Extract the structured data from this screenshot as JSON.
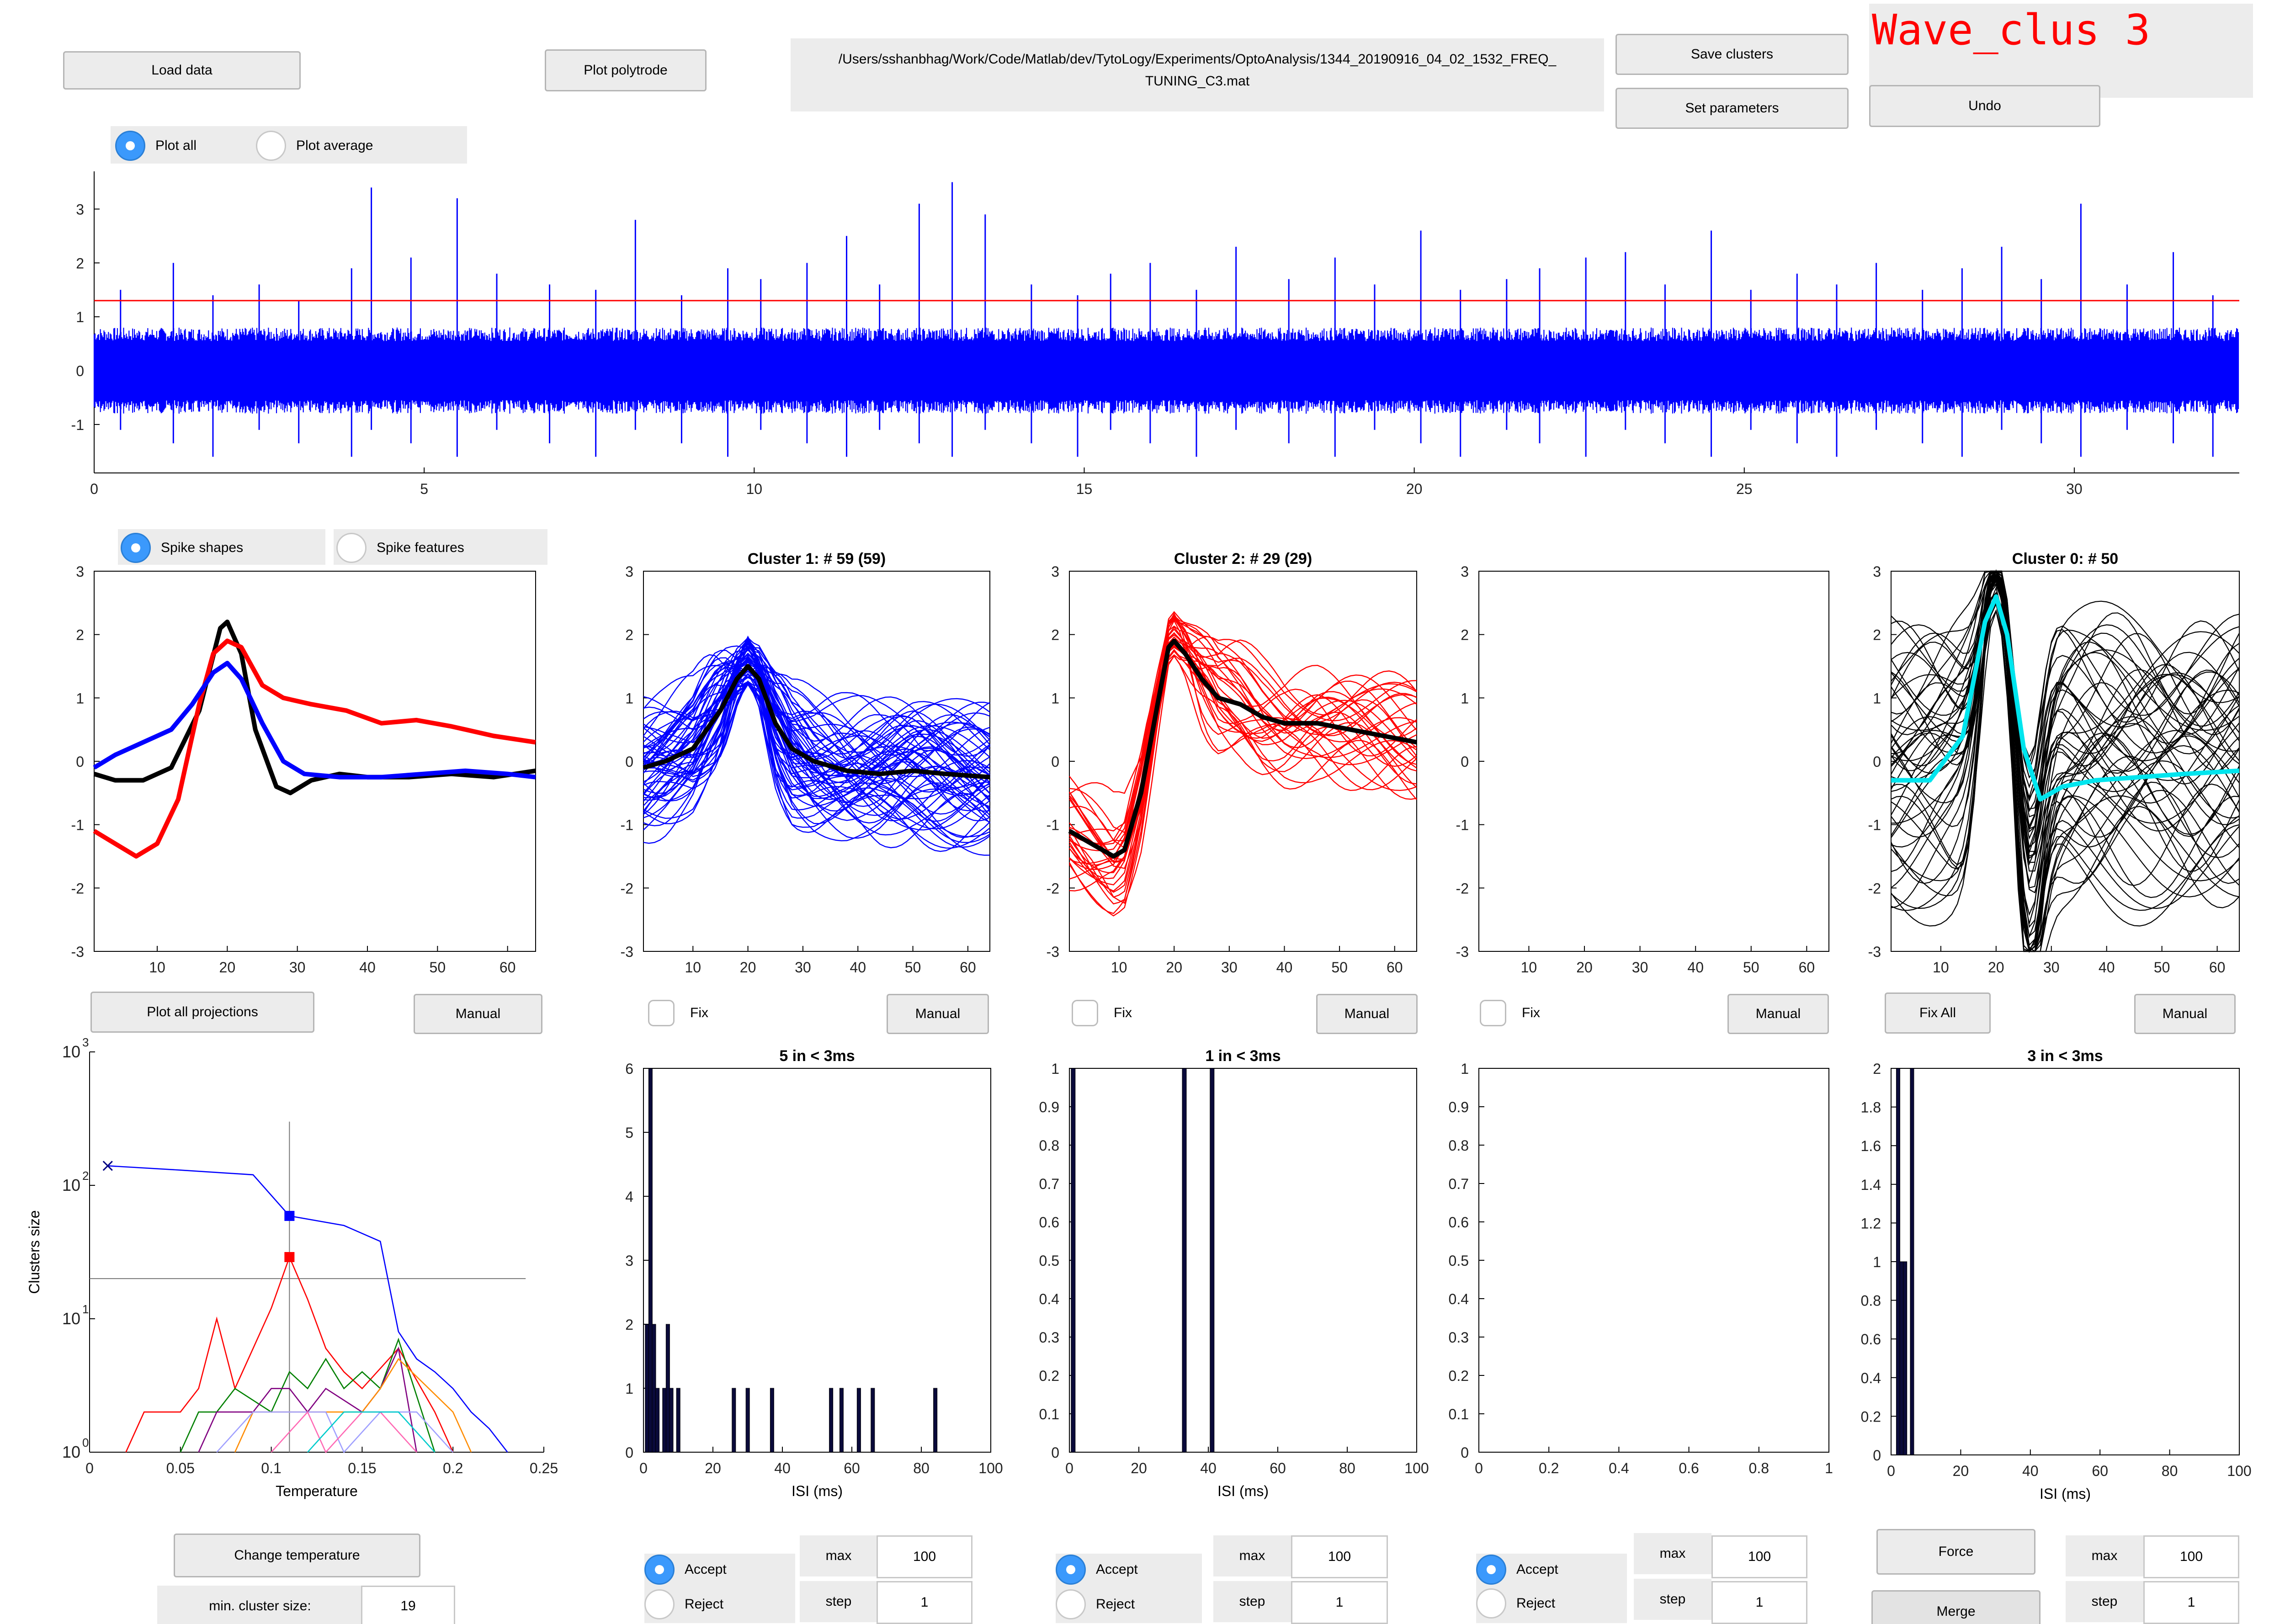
{
  "app": {
    "title": "Wave_clus 3",
    "title_color": "#ff0000"
  },
  "toolbar": {
    "load_data": "Load data",
    "plot_polytrode": "Plot polytrode",
    "file_path_line1": "/Users/sshanbhag/Work/Code/Matlab/dev/TytoLogy/Experiments/OptoAnalysis/1344_20190916_04_02_1532_FREQ_",
    "file_path_line2": "TUNING_C3.mat",
    "save_clusters": "Save clusters",
    "set_parameters": "Set parameters",
    "undo": "Undo"
  },
  "plot_mode": {
    "plot_all": "Plot all",
    "plot_average": "Plot average",
    "selected": "plot_all"
  },
  "spike_view": {
    "spike_shapes": "Spike shapes",
    "spike_features": "Spike features",
    "selected": "spike_shapes"
  },
  "buttons": {
    "plot_all_projections": "Plot all projections",
    "manual": "Manual",
    "fix": "Fix",
    "fix_all": "Fix All",
    "change_temperature": "Change temperature",
    "force": "Force",
    "merge": "Merge"
  },
  "min_cluster": {
    "label": "min. cluster size:",
    "value": "19"
  },
  "hist_controls": {
    "accept": "Accept",
    "reject": "Reject",
    "max_label": "max",
    "step_label": "step",
    "max_value": "100",
    "step_value": "1"
  },
  "chart_data": [
    {
      "id": "raw-signal",
      "type": "line",
      "x_ticks": [
        "0",
        "5",
        "10",
        "15",
        "20",
        "25",
        "30"
      ],
      "y_ticks": [
        "-1",
        "0",
        "1",
        "2",
        "3"
      ],
      "xlim": [
        0,
        32.5
      ],
      "ylim": [
        -1.9,
        3.7
      ],
      "threshold": 1.3,
      "colors": {
        "signal": "#0000ff",
        "threshold": "#ff0000"
      },
      "spike_times": [
        0.4,
        1.2,
        1.8,
        2.5,
        3.1,
        3.9,
        4.2,
        4.8,
        5.5,
        6.1,
        6.9,
        7.6,
        8.2,
        8.9,
        9.6,
        10.1,
        10.8,
        11.4,
        11.9,
        12.5,
        13.0,
        13.5,
        14.2,
        14.9,
        15.4,
        16.0,
        16.7,
        17.3,
        18.1,
        18.8,
        19.4,
        20.1,
        20.7,
        21.4,
        21.9,
        22.6,
        23.2,
        23.8,
        24.5,
        25.1,
        25.8,
        26.4,
        27.0,
        27.7,
        28.3,
        28.9,
        29.5,
        30.1,
        30.8,
        31.5,
        32.1
      ],
      "spike_heights": [
        1.5,
        2.0,
        1.4,
        1.6,
        1.3,
        1.9,
        3.4,
        2.1,
        3.2,
        1.8,
        1.6,
        1.5,
        2.8,
        1.4,
        1.9,
        1.7,
        2.0,
        2.5,
        1.6,
        3.1,
        3.5,
        2.9,
        1.6,
        1.4,
        1.8,
        2.0,
        1.5,
        2.3,
        1.7,
        2.1,
        1.6,
        2.6,
        1.5,
        1.7,
        1.9,
        2.1,
        2.2,
        1.6,
        2.6,
        1.5,
        1.8,
        1.6,
        2.0,
        1.5,
        1.9,
        2.3,
        1.7,
        3.1,
        1.6,
        2.2,
        1.4
      ]
    },
    {
      "id": "mean-spikes",
      "type": "line",
      "x_ticks": [
        "10",
        "20",
        "30",
        "40",
        "50",
        "60"
      ],
      "y_ticks": [
        "-3",
        "-2",
        "-1",
        "0",
        "1",
        "2",
        "3"
      ],
      "xlim": [
        1,
        64
      ],
      "ylim": [
        -3,
        3
      ],
      "series": [
        {
          "color": "#000000",
          "x": [
            1,
            4,
            8,
            12,
            16,
            19,
            20,
            22,
            24,
            27,
            29,
            32,
            36,
            40,
            46,
            52,
            58,
            64
          ],
          "y": [
            -0.2,
            -0.3,
            -0.3,
            -0.1,
            0.8,
            2.1,
            2.2,
            1.7,
            0.5,
            -0.4,
            -0.5,
            -0.3,
            -0.2,
            -0.25,
            -0.25,
            -0.2,
            -0.25,
            -0.15
          ]
        },
        {
          "color": "#ff0000",
          "x": [
            1,
            4,
            7,
            10,
            13,
            16,
            18,
            20,
            22,
            25,
            28,
            32,
            37,
            42,
            47,
            52,
            58,
            64
          ],
          "y": [
            -1.1,
            -1.3,
            -1.5,
            -1.3,
            -0.6,
            0.9,
            1.7,
            1.9,
            1.8,
            1.2,
            1.0,
            0.9,
            0.8,
            0.6,
            0.65,
            0.55,
            0.4,
            0.3
          ]
        },
        {
          "color": "#0000ff",
          "x": [
            1,
            4,
            8,
            12,
            15,
            18,
            20,
            22,
            25,
            28,
            31,
            36,
            42,
            48,
            54,
            60,
            64
          ],
          "y": [
            -0.1,
            0.1,
            0.3,
            0.5,
            0.9,
            1.4,
            1.55,
            1.3,
            0.6,
            0.0,
            -0.2,
            -0.25,
            -0.25,
            -0.2,
            -0.15,
            -0.2,
            -0.25
          ]
        }
      ]
    },
    {
      "id": "cluster-1",
      "type": "line",
      "title": "Cluster 1:  # 59 (59)",
      "x_ticks": [
        "10",
        "20",
        "30",
        "40",
        "50",
        "60"
      ],
      "y_ticks": [
        "-3",
        "-2",
        "-1",
        "0",
        "1",
        "2",
        "3"
      ],
      "xlim": [
        1,
        64
      ],
      "ylim": [
        -3,
        3
      ],
      "trace_color": "#0000ff",
      "mean": {
        "x": [
          1,
          5,
          10,
          15,
          18,
          20,
          22,
          25,
          28,
          32,
          38,
          44,
          50,
          56,
          64
        ],
        "y": [
          -0.1,
          0.0,
          0.2,
          0.8,
          1.3,
          1.5,
          1.3,
          0.6,
          0.2,
          0.0,
          -0.15,
          -0.2,
          -0.15,
          -0.2,
          -0.25
        ]
      }
    },
    {
      "id": "cluster-2",
      "type": "line",
      "title": "Cluster 2:  # 29 (29)",
      "x_ticks": [
        "10",
        "20",
        "30",
        "40",
        "50",
        "60"
      ],
      "y_ticks": [
        "-3",
        "-2",
        "-1",
        "0",
        "1",
        "2",
        "3"
      ],
      "xlim": [
        1,
        64
      ],
      "ylim": [
        -3,
        3
      ],
      "trace_color": "#ff0000",
      "mean": {
        "x": [
          1,
          5,
          9,
          11,
          14,
          17,
          19,
          20,
          22,
          25,
          28,
          32,
          36,
          40,
          46,
          52,
          58,
          64
        ],
        "y": [
          -1.1,
          -1.3,
          -1.5,
          -1.4,
          -0.5,
          0.9,
          1.8,
          1.9,
          1.7,
          1.3,
          1.0,
          0.9,
          0.7,
          0.6,
          0.6,
          0.5,
          0.4,
          0.3
        ]
      }
    },
    {
      "id": "cluster-3",
      "type": "line",
      "x_ticks": [
        "10",
        "20",
        "30",
        "40",
        "50",
        "60"
      ],
      "y_ticks": [
        "-3",
        "-2",
        "-1",
        "0",
        "1",
        "2",
        "3"
      ],
      "xlim": [
        1,
        64
      ],
      "ylim": [
        -3,
        3
      ]
    },
    {
      "id": "cluster-0",
      "type": "line",
      "title": "Cluster 0:  # 50",
      "x_ticks": [
        "10",
        "20",
        "30",
        "40",
        "50",
        "60"
      ],
      "y_ticks": [
        "-3",
        "-2",
        "-1",
        "0",
        "1",
        "2",
        "3"
      ],
      "xlim": [
        1,
        64
      ],
      "ylim": [
        -3,
        3
      ],
      "trace_color": "#000000",
      "highlight_color": "#00e5ee"
    },
    {
      "id": "temperature",
      "type": "line",
      "xlabel": "Temperature",
      "ylabel": "Clusters size",
      "x_ticks": [
        "0",
        "0.05",
        "0.1",
        "0.15",
        "0.2",
        "0.25"
      ],
      "y_ticks": [
        "10^0",
        "10^1",
        "10^2",
        "10^3"
      ],
      "xlim": [
        0,
        0.25
      ],
      "ylim": [
        1,
        1000
      ],
      "scale": "log",
      "hline": 20,
      "vline": 0.11,
      "series": [
        {
          "color": "#0000ff",
          "x": [
            0.01,
            0.05,
            0.09,
            0.11,
            0.14,
            0.16,
            0.17,
            0.18,
            0.19,
            0.2,
            0.21,
            0.22,
            0.23
          ],
          "y": [
            140,
            130,
            120,
            59,
            50,
            38,
            8,
            5,
            4,
            3,
            2,
            1.5,
            1
          ]
        },
        {
          "color": "#ff0000",
          "x": [
            0.02,
            0.03,
            0.05,
            0.06,
            0.07,
            0.08,
            0.1,
            0.11,
            0.12,
            0.13,
            0.14,
            0.15,
            0.17,
            0.19,
            0.2
          ],
          "y": [
            1,
            2,
            2,
            3,
            10,
            3,
            12,
            29,
            14,
            6,
            4,
            3,
            6,
            2,
            1
          ]
        },
        {
          "color": "#008000",
          "x": [
            0.05,
            0.06,
            0.07,
            0.08,
            0.1,
            0.11,
            0.12,
            0.13,
            0.14,
            0.15,
            0.16,
            0.17,
            0.19
          ],
          "y": [
            1,
            2,
            2,
            3,
            2,
            4,
            3,
            5,
            3,
            4,
            3,
            7,
            1
          ]
        },
        {
          "color": "#800080",
          "x": [
            0.06,
            0.07,
            0.08,
            0.09,
            0.1,
            0.11,
            0.12,
            0.13,
            0.15,
            0.16,
            0.17,
            0.18
          ],
          "y": [
            1,
            2,
            2,
            2,
            3,
            3,
            2,
            3,
            2,
            3,
            6,
            1
          ]
        },
        {
          "color": "#ff8c00",
          "x": [
            0.08,
            0.09,
            0.1,
            0.12,
            0.14,
            0.15,
            0.16,
            0.17,
            0.2,
            0.21
          ],
          "y": [
            1,
            2,
            2,
            2,
            2,
            2,
            3,
            5,
            2,
            1
          ]
        },
        {
          "color": "#a0a0ff",
          "x": [
            0.07,
            0.09,
            0.11,
            0.13,
            0.14,
            0.16,
            0.18,
            0.2
          ],
          "y": [
            1,
            2,
            2,
            2,
            1,
            2,
            2,
            1
          ]
        },
        {
          "color": "#ff69b4",
          "x": [
            0.1,
            0.12,
            0.13,
            0.15,
            0.16,
            0.18
          ],
          "y": [
            1,
            2,
            1,
            2,
            2,
            1
          ]
        },
        {
          "color": "#00cccc",
          "x": [
            0.12,
            0.14,
            0.16,
            0.17,
            0.19
          ],
          "y": [
            1,
            2,
            2,
            2,
            1
          ]
        }
      ],
      "markers": [
        {
          "x": 0.01,
          "y": 140,
          "color": "#000080",
          "shape": "x"
        },
        {
          "x": 0.11,
          "y": 59,
          "color": "#0000ff",
          "shape": "square"
        },
        {
          "x": 0.11,
          "y": 29,
          "color": "#ff0000",
          "shape": "square"
        }
      ]
    },
    {
      "id": "isi-1",
      "type": "bar",
      "title": "5 in < 3ms",
      "xlabel": "ISI (ms)",
      "x_ticks": [
        "0",
        "20",
        "40",
        "60",
        "80",
        "100"
      ],
      "y_ticks": [
        "0",
        "1",
        "2",
        "3",
        "4",
        "5",
        "6"
      ],
      "xlim": [
        0,
        100
      ],
      "ylim": [
        0,
        6
      ],
      "bars": [
        {
          "x": 1,
          "y": 2
        },
        {
          "x": 2,
          "y": 6
        },
        {
          "x": 3,
          "y": 2
        },
        {
          "x": 4,
          "y": 1
        },
        {
          "x": 6,
          "y": 1
        },
        {
          "x": 7,
          "y": 2
        },
        {
          "x": 8,
          "y": 1
        },
        {
          "x": 10,
          "y": 1
        },
        {
          "x": 26,
          "y": 1
        },
        {
          "x": 30,
          "y": 1
        },
        {
          "x": 37,
          "y": 1
        },
        {
          "x": 54,
          "y": 1
        },
        {
          "x": 57,
          "y": 1
        },
        {
          "x": 62,
          "y": 1
        },
        {
          "x": 66,
          "y": 1
        },
        {
          "x": 84,
          "y": 1
        }
      ]
    },
    {
      "id": "isi-2",
      "type": "bar",
      "title": "1 in < 3ms",
      "xlabel": "ISI (ms)",
      "x_ticks": [
        "0",
        "20",
        "40",
        "60",
        "80",
        "100"
      ],
      "y_ticks": [
        "0",
        "0.1",
        "0.2",
        "0.3",
        "0.4",
        "0.5",
        "0.6",
        "0.7",
        "0.8",
        "0.9",
        "1"
      ],
      "xlim": [
        0,
        100
      ],
      "ylim": [
        0,
        1
      ],
      "bars": [
        {
          "x": 1,
          "y": 1
        },
        {
          "x": 33,
          "y": 1
        },
        {
          "x": 41,
          "y": 1
        }
      ]
    },
    {
      "id": "isi-3",
      "type": "bar",
      "x_ticks": [
        "0",
        "0.2",
        "0.4",
        "0.6",
        "0.8",
        "1"
      ],
      "y_ticks": [
        "0",
        "0.1",
        "0.2",
        "0.3",
        "0.4",
        "0.5",
        "0.6",
        "0.7",
        "0.8",
        "0.9",
        "1"
      ],
      "xlim": [
        0,
        1
      ],
      "ylim": [
        0,
        1
      ],
      "bars": []
    },
    {
      "id": "isi-0",
      "type": "bar",
      "title": "3 in < 3ms",
      "xlabel": "ISI (ms)",
      "x_ticks": [
        "0",
        "20",
        "40",
        "60",
        "80",
        "100"
      ],
      "y_ticks": [
        "0",
        "0.2",
        "0.4",
        "0.6",
        "0.8",
        "1",
        "1.2",
        "1.4",
        "1.6",
        "1.8",
        "2"
      ],
      "xlim": [
        0,
        100
      ],
      "ylim": [
        0,
        2
      ],
      "bars": [
        {
          "x": 2,
          "y": 2
        },
        {
          "x": 3,
          "y": 1
        },
        {
          "x": 4,
          "y": 1
        },
        {
          "x": 6,
          "y": 2
        }
      ]
    }
  ]
}
